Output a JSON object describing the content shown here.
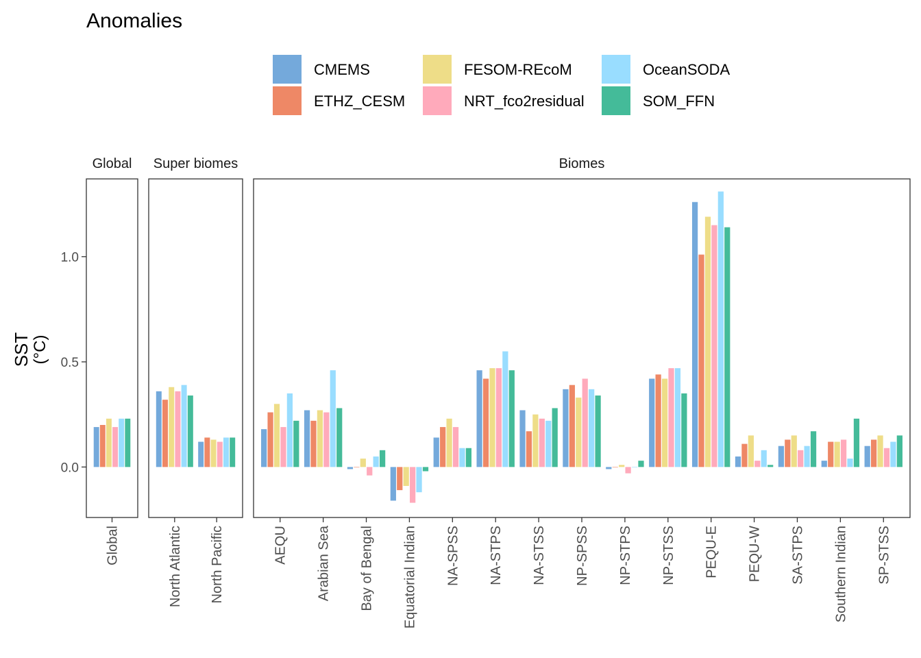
{
  "chart_data": {
    "type": "bar",
    "title": "Anomalies",
    "ylabel_line1": "SST",
    "ylabel_line2": "(°C)",
    "ylim": [
      -0.24,
      1.37
    ],
    "yticks": [
      0.0,
      0.5,
      1.0
    ],
    "ytick_labels": [
      "0.0",
      "0.5",
      "1.0"
    ],
    "grid": false,
    "legend_position": "top",
    "series": [
      {
        "name": "CMEMS",
        "color": "#74A9DB"
      },
      {
        "name": "ETHZ_CESM",
        "color": "#EE8866"
      },
      {
        "name": "FESOM-REcoM",
        "color": "#EEDD88"
      },
      {
        "name": "NRT_fco2residual",
        "color": "#FFAABB"
      },
      {
        "name": "OceanSODA",
        "color": "#99DDFF"
      },
      {
        "name": "SOM_FFN",
        "color": "#44BB99"
      }
    ],
    "panels": [
      {
        "strip": "Global",
        "categories": [
          "Global"
        ],
        "values": [
          [
            0.19,
            0.2,
            0.23,
            0.19,
            0.23,
            0.23
          ]
        ]
      },
      {
        "strip": "Super biomes",
        "categories": [
          "North Atlantic",
          "North Pacific"
        ],
        "values": [
          [
            0.36,
            0.32,
            0.38,
            0.36,
            0.39,
            0.34
          ],
          [
            0.12,
            0.14,
            0.13,
            0.12,
            0.14,
            0.14
          ]
        ]
      },
      {
        "strip": "Biomes",
        "categories": [
          "AEQU",
          "Arabian Sea",
          "Bay of Bengal",
          "Equatorial Indian",
          "NA-SPSS",
          "NA-STPS",
          "NA-STSS",
          "NP-SPSS",
          "NP-STPS",
          "NP-STSS",
          "PEQU-E",
          "PEQU-W",
          "SA-STPS",
          "Southern Indian",
          "SP-STSS"
        ],
        "values": [
          [
            0.18,
            0.26,
            0.3,
            0.19,
            0.35,
            0.22
          ],
          [
            0.27,
            0.22,
            0.27,
            0.26,
            0.46,
            0.28
          ],
          [
            -0.01,
            0.0,
            0.04,
            -0.04,
            0.05,
            0.08
          ],
          [
            -0.16,
            -0.11,
            -0.09,
            -0.17,
            -0.12,
            -0.02
          ],
          [
            0.14,
            0.19,
            0.23,
            0.19,
            0.09,
            0.09
          ],
          [
            0.46,
            0.42,
            0.47,
            0.47,
            0.55,
            0.46
          ],
          [
            0.27,
            0.17,
            0.25,
            0.23,
            0.22,
            0.28
          ],
          [
            0.37,
            0.39,
            0.33,
            0.42,
            0.37,
            0.34
          ],
          [
            -0.01,
            0.0,
            0.01,
            -0.03,
            0.0,
            0.03
          ],
          [
            0.42,
            0.44,
            0.42,
            0.47,
            0.47,
            0.35
          ],
          [
            1.26,
            1.01,
            1.19,
            1.15,
            1.31,
            1.14
          ],
          [
            0.05,
            0.11,
            0.15,
            0.03,
            0.08,
            0.01
          ],
          [
            0.1,
            0.13,
            0.15,
            0.08,
            0.1,
            0.17
          ],
          [
            0.03,
            0.12,
            0.12,
            0.13,
            0.04,
            0.23
          ],
          [
            0.1,
            0.13,
            0.15,
            0.09,
            0.12,
            0.15
          ]
        ]
      }
    ]
  }
}
